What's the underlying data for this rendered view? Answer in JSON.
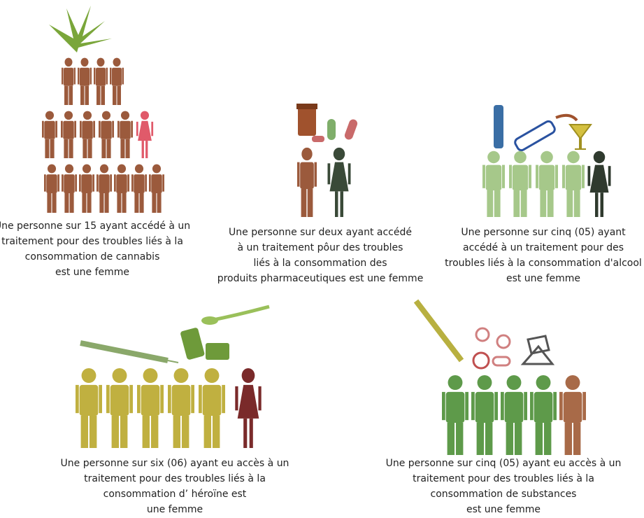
{
  "panels": [
    {
      "caption": [
        "Une personne sur 15 ayant accédé à un",
        "traitement pour des troubles liés à  la",
        "consommation de cannabis",
        "est une femme"
      ]
    },
    {
      "caption": [
        "Une personne sur deux ayant accédé",
        "à un traitement pôur des troubles",
        "liés à la consommation des",
        "produits pharmaceutiques est une femme"
      ]
    },
    {
      "caption": [
        "Une personne sur cinq (05) ayant",
        "accédé à un traitement pour des",
        "troubles liés à la consommation d'alcool",
        "est une femme"
      ]
    },
    {
      "caption": [
        "Une personne sur six (06) ayant eu accès à un",
        "traitement pour des troubles liés à la",
        "consommation d’ héroïne est",
        "une femme"
      ]
    },
    {
      "caption": [
        "Une personne sur cinq (05) ayant eu accès à un",
        "traitement pour des troubles liés à la",
        "consommation de substances",
        "est une femme"
      ]
    }
  ]
}
